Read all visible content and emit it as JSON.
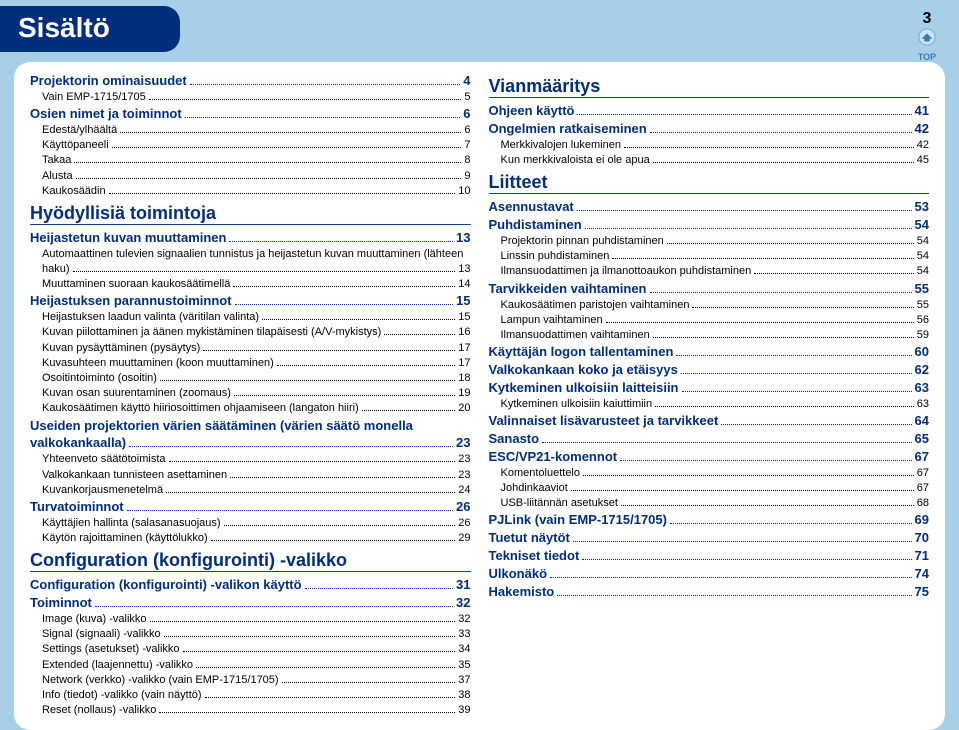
{
  "title": "Sisältö",
  "page_number": "3",
  "top_label": "TOP",
  "colors": {
    "page_bg": "#a8cfe8",
    "header_bg": "#002e7a",
    "header_text": "#ffffff",
    "box_bg": "#ffffff",
    "accent": "#002e7a",
    "text": "#000000"
  },
  "left_column": [
    {
      "type": "toc",
      "level": 0,
      "label": "Projektorin ominaisuudet",
      "page": "4"
    },
    {
      "type": "toc",
      "level": 1,
      "label": "Vain EMP-1715/1705",
      "page": "5"
    },
    {
      "type": "toc",
      "level": 0,
      "label": "Osien nimet ja toiminnot",
      "page": "6"
    },
    {
      "type": "toc",
      "level": 1,
      "label": "Edestä/ylhäältä",
      "page": "6"
    },
    {
      "type": "toc",
      "level": 1,
      "label": "Käyttöpaneeli",
      "page": "7"
    },
    {
      "type": "toc",
      "level": 1,
      "label": "Takaa",
      "page": "8"
    },
    {
      "type": "toc",
      "level": 1,
      "label": "Alusta",
      "page": "9"
    },
    {
      "type": "toc",
      "level": 1,
      "label": "Kaukosäädin",
      "page": "10"
    },
    {
      "type": "section",
      "label": "Hyödyllisiä toimintoja"
    },
    {
      "type": "toc",
      "level": 0,
      "label": "Heijastetun kuvan muuttaminen",
      "page": "13"
    },
    {
      "type": "toc",
      "level": 1,
      "wrap": true,
      "label": "Automaattinen tulevien signaalien tunnistus ja heijastetun kuvan muuttaminen (lähteen haku)",
      "page": "13"
    },
    {
      "type": "toc",
      "level": 1,
      "label": "Muuttaminen suoraan kaukosäätimellä",
      "page": "14"
    },
    {
      "type": "toc",
      "level": 0,
      "label": "Heijastuksen parannustoiminnot",
      "page": "15"
    },
    {
      "type": "toc",
      "level": 1,
      "label": "Heijastuksen laadun valinta (väritilan valinta)",
      "page": "15"
    },
    {
      "type": "toc",
      "level": 1,
      "label": "Kuvan piilottaminen ja äänen mykistäminen tilapäisesti (A/V-mykistys)",
      "page": "16"
    },
    {
      "type": "toc",
      "level": 1,
      "label": "Kuvan pysäyttäminen (pysäytys)",
      "page": "17"
    },
    {
      "type": "toc",
      "level": 1,
      "label": "Kuvasuhteen muuttaminen (koon muuttaminen)",
      "page": "17"
    },
    {
      "type": "toc",
      "level": 1,
      "label": "Osoitintoiminto (osoitin)",
      "page": "18"
    },
    {
      "type": "toc",
      "level": 1,
      "label": "Kuvan osan suurentaminen (zoomaus)",
      "page": "19"
    },
    {
      "type": "toc",
      "level": 1,
      "label": "Kaukosäätimen käyttö hiiriosoittimen ohjaamiseen (langaton hiiri)",
      "page": "20"
    },
    {
      "type": "toc",
      "level": 0,
      "wrap": true,
      "label": "Useiden projektorien värien säätäminen (värien säätö monella valkokankaalla)",
      "page": "23"
    },
    {
      "type": "toc",
      "level": 1,
      "label": "Yhteenveto säätötoimista",
      "page": "23"
    },
    {
      "type": "toc",
      "level": 1,
      "label": "Valkokankaan tunnisteen asettaminen",
      "page": "23"
    },
    {
      "type": "toc",
      "level": 1,
      "label": "Kuvankorjausmenetelmä",
      "page": "24"
    },
    {
      "type": "toc",
      "level": 0,
      "label": "Turvatoiminnot",
      "page": "26"
    },
    {
      "type": "toc",
      "level": 1,
      "label": "Käyttäjien hallinta (salasanasuojaus)",
      "page": "26"
    },
    {
      "type": "toc",
      "level": 1,
      "label": "Käytön rajoittaminen (käyttölukko)",
      "page": "29"
    },
    {
      "type": "section",
      "label": "Configuration (konfigurointi) -valikko"
    },
    {
      "type": "toc",
      "level": 0,
      "label": "Configuration (konfigurointi) -valikon käyttö",
      "page": "31"
    },
    {
      "type": "toc",
      "level": 0,
      "label": "Toiminnot",
      "page": "32"
    },
    {
      "type": "toc",
      "level": 1,
      "label": "Image (kuva) -valikko",
      "page": "32"
    },
    {
      "type": "toc",
      "level": 1,
      "label": "Signal (signaali) -valikko",
      "page": "33"
    },
    {
      "type": "toc",
      "level": 1,
      "label": "Settings (asetukset) -valikko",
      "page": "34"
    },
    {
      "type": "toc",
      "level": 1,
      "label": "Extended (laajennettu) -valikko",
      "page": "35"
    },
    {
      "type": "toc",
      "level": 1,
      "label": "Network (verkko) -valikko (vain EMP-1715/1705)",
      "page": "37"
    },
    {
      "type": "toc",
      "level": 1,
      "label": "Info (tiedot) -valikko (vain näyttö)",
      "page": "38"
    },
    {
      "type": "toc",
      "level": 1,
      "label": "Reset (nollaus) -valikko",
      "page": "39"
    }
  ],
  "right_column": [
    {
      "type": "section",
      "label": "Vianmääritys"
    },
    {
      "type": "toc",
      "level": 0,
      "label": "Ohjeen käyttö",
      "page": "41"
    },
    {
      "type": "toc",
      "level": 0,
      "label": "Ongelmien ratkaiseminen",
      "page": "42"
    },
    {
      "type": "toc",
      "level": 1,
      "label": "Merkkivalojen lukeminen",
      "page": "42"
    },
    {
      "type": "toc",
      "level": 1,
      "label": "Kun merkkivaloista ei ole apua",
      "page": "45"
    },
    {
      "type": "section",
      "label": "Liitteet"
    },
    {
      "type": "toc",
      "level": 0,
      "label": "Asennustavat",
      "page": "53"
    },
    {
      "type": "toc",
      "level": 0,
      "label": "Puhdistaminen",
      "page": "54"
    },
    {
      "type": "toc",
      "level": 1,
      "label": "Projektorin pinnan puhdistaminen",
      "page": "54"
    },
    {
      "type": "toc",
      "level": 1,
      "label": "Linssin puhdistaminen",
      "page": "54"
    },
    {
      "type": "toc",
      "level": 1,
      "label": "Ilmansuodattimen ja ilmanottoaukon puhdistaminen",
      "page": "54"
    },
    {
      "type": "toc",
      "level": 0,
      "label": "Tarvikkeiden vaihtaminen",
      "page": "55"
    },
    {
      "type": "toc",
      "level": 1,
      "label": "Kaukosäätimen paristojen vaihtaminen",
      "page": "55"
    },
    {
      "type": "toc",
      "level": 1,
      "label": "Lampun vaihtaminen",
      "page": "56"
    },
    {
      "type": "toc",
      "level": 1,
      "label": "Ilmansuodattimen vaihtaminen",
      "page": "59"
    },
    {
      "type": "toc",
      "level": 0,
      "label": "Käyttäjän logon tallentaminen",
      "page": "60"
    },
    {
      "type": "toc",
      "level": 0,
      "label": "Valkokankaan koko ja etäisyys",
      "page": "62"
    },
    {
      "type": "toc",
      "level": 0,
      "label": "Kytkeminen ulkoisiin laitteisiin",
      "page": "63"
    },
    {
      "type": "toc",
      "level": 1,
      "label": "Kytkeminen ulkoisiin kaiuttimiin",
      "page": "63"
    },
    {
      "type": "toc",
      "level": 0,
      "label": "Valinnaiset lisävarusteet ja tarvikkeet",
      "page": "64"
    },
    {
      "type": "toc",
      "level": 0,
      "label": "Sanasto",
      "page": "65"
    },
    {
      "type": "toc",
      "level": 0,
      "label": "ESC/VP21-komennot",
      "page": "67"
    },
    {
      "type": "toc",
      "level": 1,
      "label": "Komentoluettelo",
      "page": "67"
    },
    {
      "type": "toc",
      "level": 1,
      "label": "Johdinkaaviot",
      "page": "67"
    },
    {
      "type": "toc",
      "level": 1,
      "label": "USB-liitännän asetukset",
      "page": "68"
    },
    {
      "type": "toc",
      "level": 0,
      "label": "PJLink (vain EMP-1715/1705)",
      "page": "69"
    },
    {
      "type": "toc",
      "level": 0,
      "label": "Tuetut näytöt",
      "page": "70"
    },
    {
      "type": "toc",
      "level": 0,
      "label": "Tekniset tiedot",
      "page": "71"
    },
    {
      "type": "toc",
      "level": 0,
      "label": "Ulkonäkö",
      "page": "74"
    },
    {
      "type": "toc",
      "level": 0,
      "label": "Hakemisto",
      "page": "75"
    }
  ]
}
